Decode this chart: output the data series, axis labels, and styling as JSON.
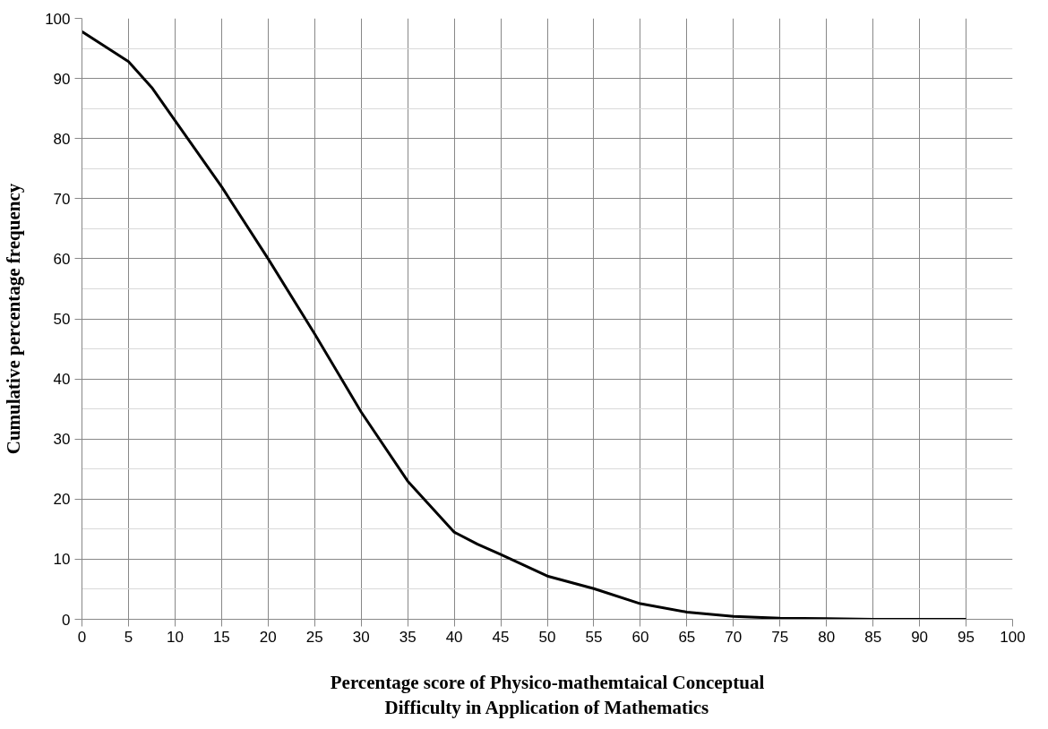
{
  "chart_data": {
    "type": "line",
    "xlabel": "Percentage score of Physico-mathemtaical Conceptual\nDifficulty in Application of Mathematics",
    "ylabel": "Cumulative percentage frequency",
    "x": [
      0,
      2.5,
      5,
      7.5,
      10,
      15,
      20,
      25,
      30,
      35,
      40,
      42.5,
      45,
      50,
      55,
      60,
      65,
      70,
      75,
      80,
      85,
      90,
      95
    ],
    "series": [
      {
        "color": "#000000",
        "values": [
          97.8,
          95.3,
          92.8,
          88.5,
          83,
          72,
          60,
          47.5,
          34.5,
          23,
          14.5,
          12.5,
          10.8,
          7.2,
          5.1,
          2.6,
          1.2,
          0.5,
          0.2,
          0.1,
          0,
          0,
          0
        ]
      }
    ],
    "xlim": [
      0,
      100
    ],
    "ylim": [
      0,
      100
    ],
    "xticks": [
      0,
      5,
      10,
      15,
      20,
      25,
      30,
      35,
      40,
      45,
      50,
      55,
      60,
      65,
      70,
      75,
      80,
      85,
      90,
      95,
      100
    ],
    "yticks": [
      0,
      10,
      20,
      30,
      40,
      50,
      60,
      70,
      80,
      90,
      100
    ],
    "grid": true,
    "marker": "none",
    "line_style": "solid"
  }
}
